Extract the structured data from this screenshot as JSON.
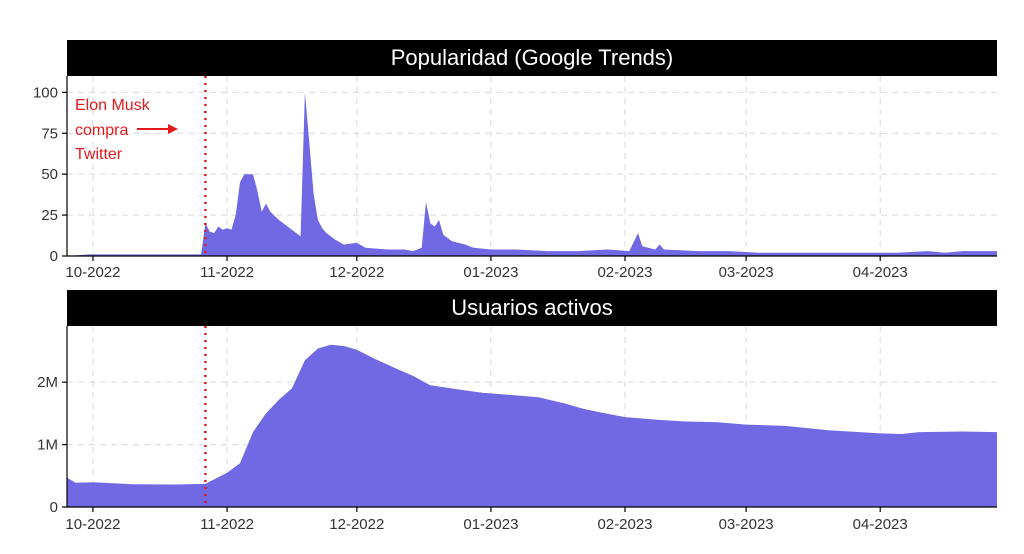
{
  "chart_data": [
    {
      "type": "area",
      "title": "Popularidad (Google Trends)",
      "fill_color": "#7169e3",
      "ylim": [
        0,
        110
      ],
      "y_ticks": [
        0,
        25,
        50,
        75,
        100
      ],
      "y_tick_labels": [
        "0",
        "25",
        "50",
        "75",
        "100"
      ],
      "x_tick_dates": [
        "2022-10-01",
        "2022-11-01",
        "2022-12-01",
        "2023-01-01",
        "2023-02-01",
        "2023-03-01",
        "2023-04-01"
      ],
      "x_tick_labels": [
        "10-2022",
        "11-2022",
        "12-2022",
        "01-2023",
        "02-2023",
        "03-2023",
        "04-2023"
      ],
      "xlim": [
        "2022-09-25",
        "2023-04-28"
      ],
      "grid": true,
      "series": [
        {
          "points": [
            [
              "2022-09-25",
              0
            ],
            [
              "2022-09-30",
              1
            ],
            [
              "2022-10-08",
              1
            ],
            [
              "2022-10-15",
              1
            ],
            [
              "2022-10-20",
              1
            ],
            [
              "2022-10-26",
              1
            ],
            [
              "2022-10-27",
              20
            ],
            [
              "2022-10-28",
              15
            ],
            [
              "2022-10-29",
              14
            ],
            [
              "2022-10-30",
              18
            ],
            [
              "2022-10-31",
              16
            ],
            [
              "2022-11-01",
              17
            ],
            [
              "2022-11-02",
              16
            ],
            [
              "2022-11-03",
              25
            ],
            [
              "2022-11-04",
              45
            ],
            [
              "2022-11-05",
              50
            ],
            [
              "2022-11-07",
              50
            ],
            [
              "2022-11-08",
              40
            ],
            [
              "2022-11-09",
              27
            ],
            [
              "2022-11-10",
              32
            ],
            [
              "2022-11-11",
              27
            ],
            [
              "2022-11-13",
              22
            ],
            [
              "2022-11-15",
              18
            ],
            [
              "2022-11-17",
              14
            ],
            [
              "2022-11-18",
              12
            ],
            [
              "2022-11-19",
              100
            ],
            [
              "2022-11-20",
              70
            ],
            [
              "2022-11-21",
              38
            ],
            [
              "2022-11-22",
              22
            ],
            [
              "2022-11-23",
              17
            ],
            [
              "2022-11-24",
              14
            ],
            [
              "2022-11-26",
              10
            ],
            [
              "2022-11-28",
              7
            ],
            [
              "2022-12-01",
              8
            ],
            [
              "2022-12-03",
              5
            ],
            [
              "2022-12-08",
              4
            ],
            [
              "2022-12-12",
              4
            ],
            [
              "2022-12-14",
              3
            ],
            [
              "2022-12-16",
              5
            ],
            [
              "2022-12-17",
              33
            ],
            [
              "2022-12-18",
              20
            ],
            [
              "2022-12-19",
              18
            ],
            [
              "2022-12-20",
              22
            ],
            [
              "2022-12-21",
              13
            ],
            [
              "2022-12-23",
              9
            ],
            [
              "2022-12-26",
              7
            ],
            [
              "2022-12-28",
              5
            ],
            [
              "2023-01-01",
              4
            ],
            [
              "2023-01-07",
              4
            ],
            [
              "2023-01-14",
              3
            ],
            [
              "2023-01-21",
              3
            ],
            [
              "2023-01-28",
              4
            ],
            [
              "2023-02-02",
              3
            ],
            [
              "2023-02-04",
              14
            ],
            [
              "2023-02-05",
              6
            ],
            [
              "2023-02-08",
              4
            ],
            [
              "2023-02-09",
              7
            ],
            [
              "2023-02-10",
              4
            ],
            [
              "2023-02-18",
              3
            ],
            [
              "2023-02-25",
              3
            ],
            [
              "2023-03-04",
              2
            ],
            [
              "2023-03-15",
              2
            ],
            [
              "2023-03-25",
              2
            ],
            [
              "2023-04-05",
              2
            ],
            [
              "2023-04-12",
              3
            ],
            [
              "2023-04-16",
              2
            ],
            [
              "2023-04-20",
              3
            ],
            [
              "2023-04-25",
              3
            ],
            [
              "2023-04-28",
              3
            ]
          ]
        }
      ],
      "event_date": "2022-10-27",
      "event_color": "#e31a1c",
      "annotation": {
        "lines": [
          "Elon Musk",
          "compra",
          "Twitter"
        ],
        "color": "#e31a1c"
      }
    },
    {
      "type": "area",
      "title": "Usuarios activos",
      "fill_color": "#7169e3",
      "ylim": [
        0,
        2900000
      ],
      "y_ticks": [
        0,
        1000000,
        2000000
      ],
      "y_tick_labels": [
        "0",
        "1M",
        "2M"
      ],
      "x_tick_dates": [
        "2022-10-01",
        "2022-11-01",
        "2022-12-01",
        "2023-01-01",
        "2023-02-01",
        "2023-03-01",
        "2023-04-01"
      ],
      "x_tick_labels": [
        "10-2022",
        "11-2022",
        "12-2022",
        "01-2023",
        "02-2023",
        "03-2023",
        "04-2023"
      ],
      "xlim": [
        "2022-09-25",
        "2023-04-28"
      ],
      "grid": true,
      "series": [
        {
          "points": [
            [
              "2022-09-25",
              470000
            ],
            [
              "2022-09-27",
              390000
            ],
            [
              "2022-10-01",
              395000
            ],
            [
              "2022-10-10",
              365000
            ],
            [
              "2022-10-20",
              360000
            ],
            [
              "2022-10-27",
              370000
            ],
            [
              "2022-11-01",
              550000
            ],
            [
              "2022-11-04",
              700000
            ],
            [
              "2022-11-07",
              1200000
            ],
            [
              "2022-11-10",
              1500000
            ],
            [
              "2022-11-13",
              1720000
            ],
            [
              "2022-11-16",
              1900000
            ],
            [
              "2022-11-19",
              2350000
            ],
            [
              "2022-11-22",
              2540000
            ],
            [
              "2022-11-25",
              2600000
            ],
            [
              "2022-11-28",
              2580000
            ],
            [
              "2022-12-01",
              2520000
            ],
            [
              "2022-12-05",
              2380000
            ],
            [
              "2022-12-10",
              2220000
            ],
            [
              "2022-12-14",
              2100000
            ],
            [
              "2022-12-18",
              1950000
            ],
            [
              "2022-12-25",
              1880000
            ],
            [
              "2022-12-30",
              1830000
            ],
            [
              "2023-01-05",
              1800000
            ],
            [
              "2023-01-12",
              1760000
            ],
            [
              "2023-01-18",
              1660000
            ],
            [
              "2023-01-22",
              1580000
            ],
            [
              "2023-01-26",
              1520000
            ],
            [
              "2023-02-01",
              1440000
            ],
            [
              "2023-02-08",
              1400000
            ],
            [
              "2023-02-15",
              1370000
            ],
            [
              "2023-02-22",
              1360000
            ],
            [
              "2023-03-01",
              1320000
            ],
            [
              "2023-03-10",
              1300000
            ],
            [
              "2023-03-20",
              1230000
            ],
            [
              "2023-04-01",
              1180000
            ],
            [
              "2023-04-06",
              1170000
            ],
            [
              "2023-04-10",
              1200000
            ],
            [
              "2023-04-20",
              1210000
            ],
            [
              "2023-04-28",
              1200000
            ]
          ]
        }
      ],
      "event_date": "2022-10-27",
      "event_color": "#e31a1c"
    }
  ]
}
